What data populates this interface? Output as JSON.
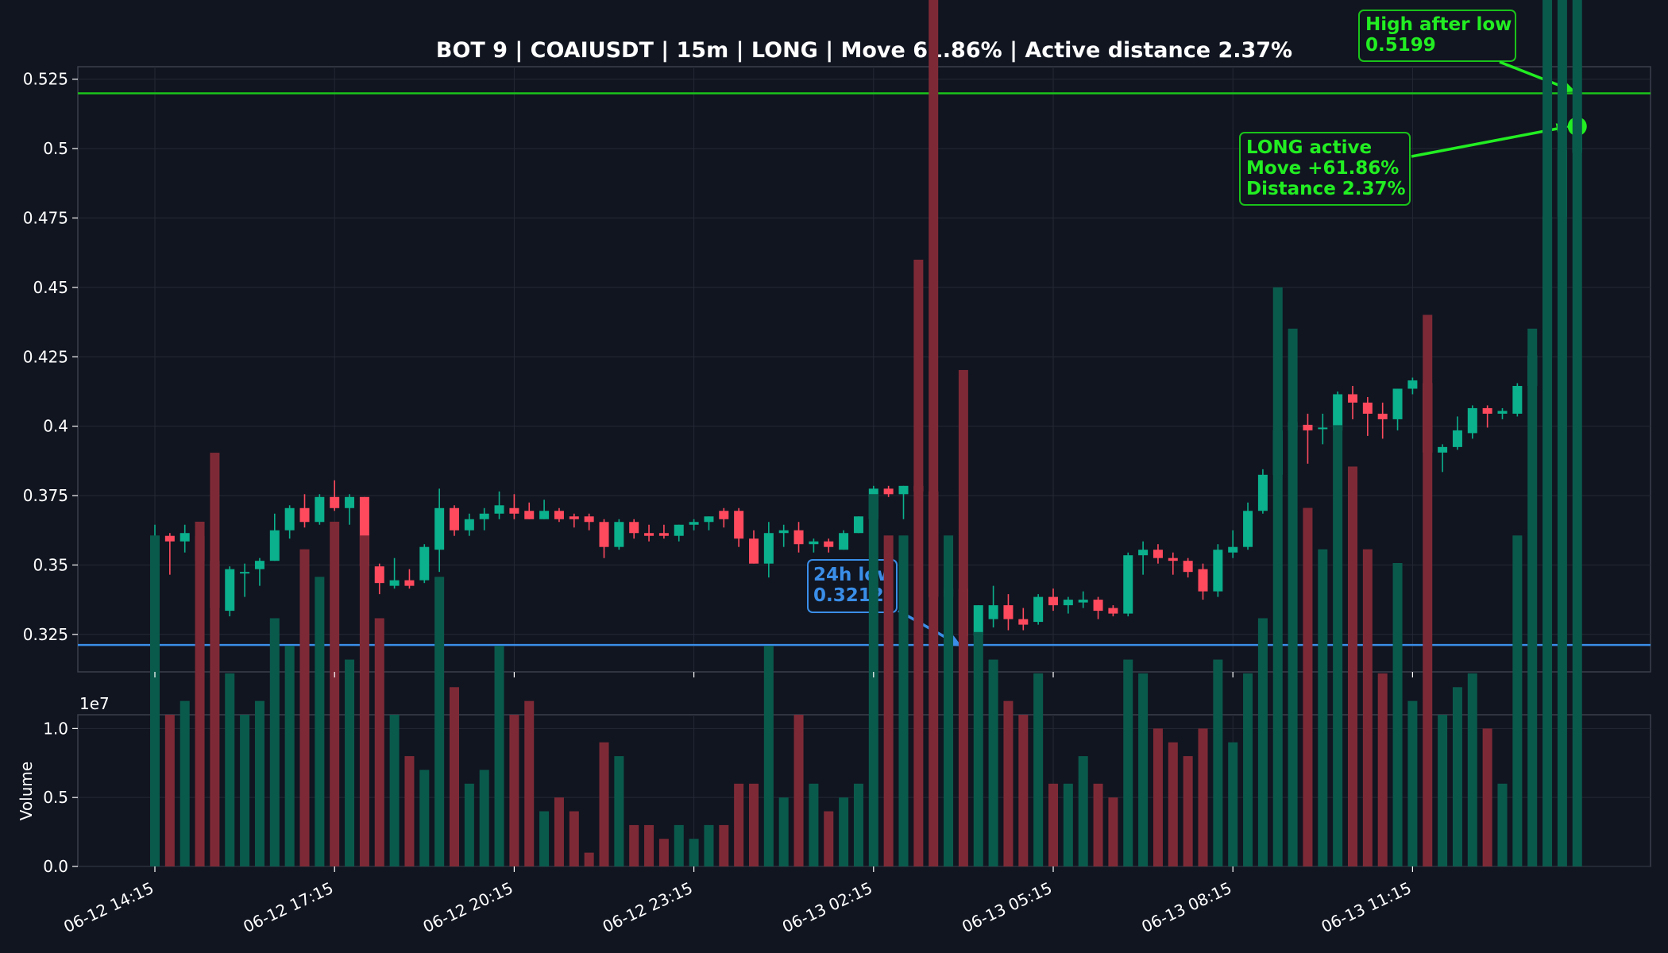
{
  "chart_data": {
    "type": "candlestick",
    "title": "BOT 9 | COAIUSDT | 15m | LONG | Move 61.86% | Active distance 2.37%",
    "price_axis": {
      "ylim": [
        0.3115,
        0.5295
      ],
      "ticks": [
        0.325,
        0.35,
        0.375,
        0.4,
        0.425,
        0.45,
        0.475,
        0.5,
        0.525
      ],
      "tick_labels": [
        "0.325",
        "0.35",
        "0.375",
        "0.4",
        "0.425",
        "0.45",
        "0.475",
        "0.5",
        "0.525"
      ]
    },
    "volume_axis": {
      "ylabel": "Volume",
      "multiplier_label": "1e7",
      "ylim": [
        0,
        1.1
      ],
      "ticks": [
        0,
        0.5,
        1.0
      ],
      "tick_labels": [
        "0.0",
        "0.5",
        "1.0"
      ]
    },
    "x_axis": {
      "tick_index": [
        0,
        12,
        24,
        36,
        48,
        60,
        72,
        84
      ],
      "tick_labels": [
        "06-12 14:15",
        "06-12 17:15",
        "06-12 20:15",
        "06-12 23:15",
        "06-13 02:15",
        "06-13 05:15",
        "06-13 08:15",
        "06-13 11:15"
      ]
    },
    "candles": [
      [
        0.3585,
        0.3645,
        0.3465,
        0.3605
      ],
      [
        0.3605,
        0.3615,
        0.3465,
        0.3585
      ],
      [
        0.3585,
        0.3645,
        0.3545,
        0.3615
      ],
      [
        0.3605,
        0.3615,
        0.3385,
        0.3515
      ],
      [
        0.3515,
        0.3525,
        0.3225,
        0.3345
      ],
      [
        0.3335,
        0.3495,
        0.3315,
        0.3485
      ],
      [
        0.3475,
        0.3505,
        0.3385,
        0.3475
      ],
      [
        0.3485,
        0.3525,
        0.3425,
        0.3515
      ],
      [
        0.3515,
        0.3685,
        0.3515,
        0.3625
      ],
      [
        0.3625,
        0.3715,
        0.3595,
        0.3705
      ],
      [
        0.3705,
        0.3755,
        0.3635,
        0.3655
      ],
      [
        0.3655,
        0.3755,
        0.3645,
        0.3745
      ],
      [
        0.3745,
        0.3805,
        0.3695,
        0.3705
      ],
      [
        0.3705,
        0.3755,
        0.3645,
        0.3745
      ],
      [
        0.3745,
        0.3745,
        0.3485,
        0.3495
      ],
      [
        0.3495,
        0.3505,
        0.3395,
        0.3435
      ],
      [
        0.3425,
        0.3525,
        0.3415,
        0.3445
      ],
      [
        0.3445,
        0.3485,
        0.3415,
        0.3425
      ],
      [
        0.3445,
        0.3575,
        0.3435,
        0.3565
      ],
      [
        0.3555,
        0.3775,
        0.3475,
        0.3705
      ],
      [
        0.3705,
        0.3715,
        0.3605,
        0.3625
      ],
      [
        0.3625,
        0.3685,
        0.3605,
        0.3665
      ],
      [
        0.3665,
        0.3705,
        0.3625,
        0.3685
      ],
      [
        0.3685,
        0.3765,
        0.3665,
        0.3715
      ],
      [
        0.3705,
        0.3755,
        0.3665,
        0.3685
      ],
      [
        0.3695,
        0.3725,
        0.3665,
        0.3665
      ],
      [
        0.3665,
        0.3735,
        0.3665,
        0.3695
      ],
      [
        0.3695,
        0.3705,
        0.3655,
        0.3665
      ],
      [
        0.3675,
        0.3685,
        0.3635,
        0.3665
      ],
      [
        0.3675,
        0.3685,
        0.3625,
        0.3655
      ],
      [
        0.3655,
        0.3665,
        0.3525,
        0.3565
      ],
      [
        0.3565,
        0.3665,
        0.3555,
        0.3655
      ],
      [
        0.3655,
        0.3665,
        0.3595,
        0.3615
      ],
      [
        0.3615,
        0.3645,
        0.3585,
        0.3605
      ],
      [
        0.3615,
        0.3645,
        0.3595,
        0.3605
      ],
      [
        0.3605,
        0.3645,
        0.3585,
        0.3645
      ],
      [
        0.3645,
        0.3665,
        0.3625,
        0.3655
      ],
      [
        0.3655,
        0.3675,
        0.3625,
        0.3675
      ],
      [
        0.3695,
        0.3705,
        0.3635,
        0.3665
      ],
      [
        0.3695,
        0.3705,
        0.3565,
        0.3595
      ],
      [
        0.3595,
        0.3625,
        0.3505,
        0.3505
      ],
      [
        0.3505,
        0.3655,
        0.3455,
        0.3615
      ],
      [
        0.3615,
        0.3645,
        0.3565,
        0.3625
      ],
      [
        0.3625,
        0.3655,
        0.3545,
        0.3575
      ],
      [
        0.3575,
        0.3595,
        0.3545,
        0.3585
      ],
      [
        0.3585,
        0.3595,
        0.3545,
        0.3565
      ],
      [
        0.3555,
        0.3625,
        0.3555,
        0.3615
      ],
      [
        0.3615,
        0.3675,
        0.3615,
        0.3675
      ],
      [
        0.3665,
        0.3785,
        0.3665,
        0.3775
      ],
      [
        0.3775,
        0.3785,
        0.3745,
        0.3755
      ],
      [
        0.3755,
        0.3785,
        0.3665,
        0.3785
      ],
      [
        0.3785,
        0.3865,
        0.3745,
        0.3765
      ],
      [
        0.3765,
        0.3765,
        0.3375,
        0.3385
      ],
      [
        0.3385,
        0.3465,
        0.3355,
        0.3415
      ],
      [
        0.3415,
        0.3415,
        0.3215,
        0.3245
      ],
      [
        0.3245,
        0.3355,
        0.3235,
        0.3355
      ],
      [
        0.3305,
        0.3425,
        0.3275,
        0.3355
      ],
      [
        0.3355,
        0.3395,
        0.3265,
        0.3305
      ],
      [
        0.3305,
        0.3345,
        0.3265,
        0.3285
      ],
      [
        0.3295,
        0.3395,
        0.3285,
        0.3385
      ],
      [
        0.3385,
        0.3415,
        0.3335,
        0.3355
      ],
      [
        0.3355,
        0.3385,
        0.3325,
        0.3375
      ],
      [
        0.3365,
        0.3405,
        0.3345,
        0.3375
      ],
      [
        0.3375,
        0.3385,
        0.3305,
        0.3335
      ],
      [
        0.3345,
        0.3355,
        0.3315,
        0.3325
      ],
      [
        0.3325,
        0.3545,
        0.3315,
        0.3535
      ],
      [
        0.3535,
        0.3585,
        0.3465,
        0.3555
      ],
      [
        0.3555,
        0.3575,
        0.3505,
        0.3525
      ],
      [
        0.3525,
        0.3545,
        0.3465,
        0.3515
      ],
      [
        0.3515,
        0.3525,
        0.3455,
        0.3475
      ],
      [
        0.3485,
        0.3505,
        0.3375,
        0.3405
      ],
      [
        0.3405,
        0.3575,
        0.3385,
        0.3555
      ],
      [
        0.3545,
        0.3625,
        0.3525,
        0.3565
      ],
      [
        0.3565,
        0.3725,
        0.3555,
        0.3695
      ],
      [
        0.3695,
        0.3845,
        0.3685,
        0.3825
      ],
      [
        0.3825,
        0.3995,
        0.3795,
        0.3985
      ],
      [
        0.3985,
        0.4055,
        0.3865,
        0.4015
      ],
      [
        0.4005,
        0.4045,
        0.3865,
        0.3985
      ],
      [
        0.3995,
        0.4045,
        0.3935,
        0.3995
      ],
      [
        0.3985,
        0.4125,
        0.3945,
        0.4115
      ],
      [
        0.4115,
        0.4145,
        0.4025,
        0.4085
      ],
      [
        0.4085,
        0.4105,
        0.3965,
        0.4045
      ],
      [
        0.4045,
        0.4085,
        0.3955,
        0.4025
      ],
      [
        0.4025,
        0.4135,
        0.3985,
        0.4135
      ],
      [
        0.4135,
        0.4175,
        0.4115,
        0.4165
      ],
      [
        0.4155,
        0.4165,
        0.3805,
        0.3905
      ],
      [
        0.3905,
        0.3935,
        0.3835,
        0.3925
      ],
      [
        0.3925,
        0.4035,
        0.3915,
        0.3985
      ],
      [
        0.3975,
        0.4075,
        0.3955,
        0.4065
      ],
      [
        0.4065,
        0.4075,
        0.3995,
        0.4045
      ],
      [
        0.4045,
        0.4065,
        0.4025,
        0.4055
      ],
      [
        0.4045,
        0.4155,
        0.4035,
        0.4145
      ],
      [
        0.4145,
        0.4265,
        0.4125,
        0.4255
      ],
      [
        0.4255,
        0.4845,
        0.4195,
        0.4755
      ],
      [
        0.4755,
        0.5045,
        0.4685,
        0.4995
      ],
      [
        0.4985,
        0.5195,
        0.4965,
        0.5075
      ]
    ],
    "volume": [
      2.4,
      1.1,
      1.2,
      2.5,
      3.0,
      1.4,
      1.1,
      1.2,
      1.8,
      1.6,
      2.3,
      2.1,
      2.5,
      1.5,
      2.4,
      1.8,
      1.1,
      0.8,
      0.7,
      2.1,
      1.3,
      0.6,
      0.7,
      1.6,
      1.1,
      1.2,
      0.4,
      0.5,
      0.4,
      0.1,
      0.9,
      0.8,
      0.3,
      0.3,
      0.2,
      0.3,
      0.2,
      0.3,
      0.3,
      0.6,
      0.6,
      1.6,
      0.5,
      1.1,
      0.6,
      0.4,
      0.5,
      0.6,
      2.7,
      2.4,
      2.4,
      4.4,
      8.3,
      2.4,
      3.6,
      1.7,
      1.5,
      1.2,
      1.1,
      1.4,
      0.6,
      0.6,
      0.8,
      0.6,
      0.5,
      1.5,
      1.4,
      1.0,
      0.9,
      0.8,
      1.0,
      1.5,
      0.9,
      1.4,
      1.8,
      4.2,
      3.9,
      2.6,
      2.3,
      3.2,
      2.9,
      2.3,
      1.4,
      2.2,
      1.2,
      4.0,
      1.1,
      1.3,
      1.4,
      1.0,
      0.6,
      2.4,
      3.9,
      10.5,
      10.3,
      8.7
    ],
    "levels": {
      "low_24h": 0.3212,
      "high_after_low": 0.5199,
      "active_price": 0.508
    },
    "annotations": {
      "low_line1": "24h low",
      "low_line2": "0.3212",
      "high_line1": "High after low",
      "high_line2": "0.5199",
      "long_line1": "LONG active",
      "long_line2": "Move +61.86%",
      "long_line3": "Distance 2.37%"
    },
    "colors": {
      "background": "#111520",
      "up": "#0bb08c",
      "down": "#ff4a5e",
      "up_volume": "#0a5a4c",
      "down_volume": "#7e2a36",
      "low_line": "#3a8ee8",
      "high_line": "#1ac31a",
      "accent_green": "#22ee22",
      "text": "#ffffff",
      "grid": "#242935",
      "spine": "#3a3f4b"
    }
  }
}
